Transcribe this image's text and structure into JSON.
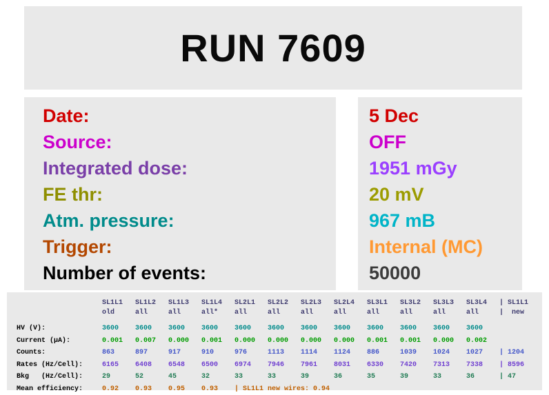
{
  "title": "RUN 7609",
  "info": {
    "rows": [
      {
        "label": "Date:",
        "value": "5 Dec"
      },
      {
        "label": "Source:",
        "value": "OFF"
      },
      {
        "label": "Integrated dose:",
        "value": "1951 mGy"
      },
      {
        "label": "FE thr:",
        "value": "20 mV"
      },
      {
        "label": "Atm. pressure:",
        "value": "967 mB"
      },
      {
        "label": "Trigger:",
        "value": "Internal (MC)"
      },
      {
        "label": "Number of events:",
        "value": "50000"
      }
    ]
  },
  "colors": {
    "panel_background": "#e9e9e9",
    "date": "#d10000",
    "source": "#cc00cc",
    "dose_label": "#7a3fa8",
    "dose_value": "#9a3fff",
    "fe_thr": "#8f8f00",
    "pressure_label": "#008b8b",
    "pressure_value": "#00b4c8",
    "trigger_label": "#b34700",
    "trigger_value": "#ff9933",
    "events_value": "#3c3c3c",
    "table_header": "#3d3a6e",
    "hv_row": "#008b8b",
    "current_row": "#009c00",
    "counts_row": "#4356c9",
    "rates_row": "#6f3fd0",
    "bkg_row": "#1e7a52",
    "efficiency_row": "#c06000"
  },
  "table": {
    "header": [
      "SL1L1",
      "SL1L2",
      "SL1L3",
      "SL1L4",
      "SL2L1",
      "SL2L2",
      "SL2L3",
      "SL2L4",
      "SL3L1",
      "SL3L2",
      "SL3L3",
      "SL3L4",
      "| SL1L1"
    ],
    "subheader": [
      "old",
      "all",
      "all",
      "all*",
      "all",
      "all",
      "all",
      "all",
      "all",
      "all",
      "all",
      "all",
      "|  new"
    ],
    "rows": [
      {
        "label": "HV (V):",
        "values": [
          "3600",
          "3600",
          "3600",
          "3600",
          "3600",
          "3600",
          "3600",
          "3600",
          "3600",
          "3600",
          "3600",
          "3600",
          ""
        ]
      },
      {
        "label": "Current (µA):",
        "values": [
          "0.001",
          "0.007",
          "0.000",
          "0.001",
          "0.000",
          "0.000",
          "0.000",
          "0.000",
          "0.001",
          "0.001",
          "0.000",
          "0.002",
          ""
        ]
      },
      {
        "label": "Counts:",
        "values": [
          "863",
          "897",
          "917",
          "910",
          "976",
          "1113",
          "1114",
          "1124",
          "886",
          "1039",
          "1024",
          "1027",
          "| 1204"
        ]
      },
      {
        "label": "Rates (Hz/Cell):",
        "values": [
          "6165",
          "6408",
          "6548",
          "6500",
          "6974",
          "7946",
          "7961",
          "8031",
          "6330",
          "7420",
          "7313",
          "7338",
          "| 8596"
        ]
      },
      {
        "label": "Bkg   (Hz/Cell):",
        "values": [
          "29",
          "52",
          "45",
          "32",
          "33",
          "33",
          "39",
          "36",
          "35",
          "39",
          "33",
          "36",
          "| 47"
        ]
      },
      {
        "label": "Mean efficiency:",
        "values": [
          "0.92",
          "0.93",
          "0.95",
          "0.93"
        ],
        "note": "| SL1L1 new wires: 0.94"
      }
    ]
  }
}
